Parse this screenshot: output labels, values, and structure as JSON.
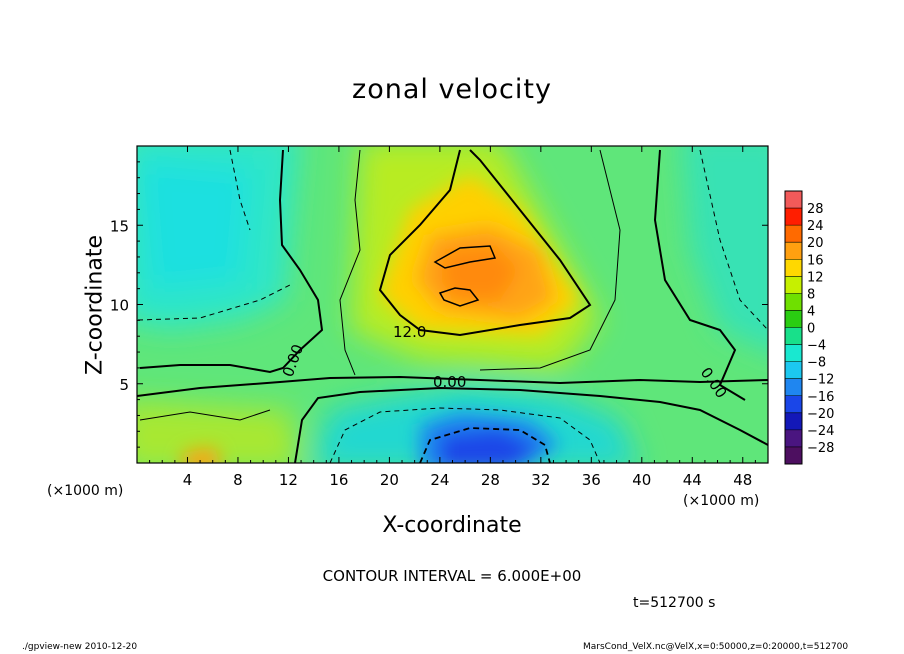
{
  "chart_data": {
    "type": "heatmap",
    "title": "zonal velocity",
    "xlabel": "X-coordinate",
    "ylabel": "Z-coordinate",
    "x_unit": "(×1000 m)",
    "z_unit": "(×1000 m)",
    "xlim": [
      0,
      50
    ],
    "ylim": [
      0,
      20
    ],
    "x_ticks": [
      4,
      8,
      12,
      16,
      20,
      24,
      28,
      32,
      36,
      40,
      44,
      48
    ],
    "y_ticks": [
      5,
      10,
      15
    ],
    "colorbar_levels": [
      28,
      24,
      20,
      16,
      12,
      8,
      4,
      0,
      -4,
      -8,
      -12,
      -16,
      -20,
      -24,
      -28
    ],
    "colorbar_colors": [
      "#f25a5a",
      "#ff1e00",
      "#ff6a00",
      "#ffa010",
      "#ffd800",
      "#c6f000",
      "#6fe000",
      "#2acd12",
      "#18e08a",
      "#19e8d0",
      "#1cc8f0",
      "#1f86f0",
      "#1a46e8",
      "#1318b8",
      "#4a1580",
      "#4d0f60"
    ],
    "contour_interval": 6.0,
    "contour_labels": [
      "12.0",
      "0.00",
      "0.00",
      "0.00"
    ],
    "max_region": {
      "x": 26,
      "z": 12,
      "value": 18
    },
    "min_region": {
      "x": 28,
      "z": 1,
      "value": -14
    }
  },
  "annotations": {
    "contour_note": "CONTOUR INTERVAL = 6.000E+00",
    "time_note": "t=512700 s",
    "footer_left": "./gpview-new   2010-12-20",
    "footer_right": "MarsCond_VelX.nc@VelX,x=0:50000,z=0:20000,t=512700"
  }
}
